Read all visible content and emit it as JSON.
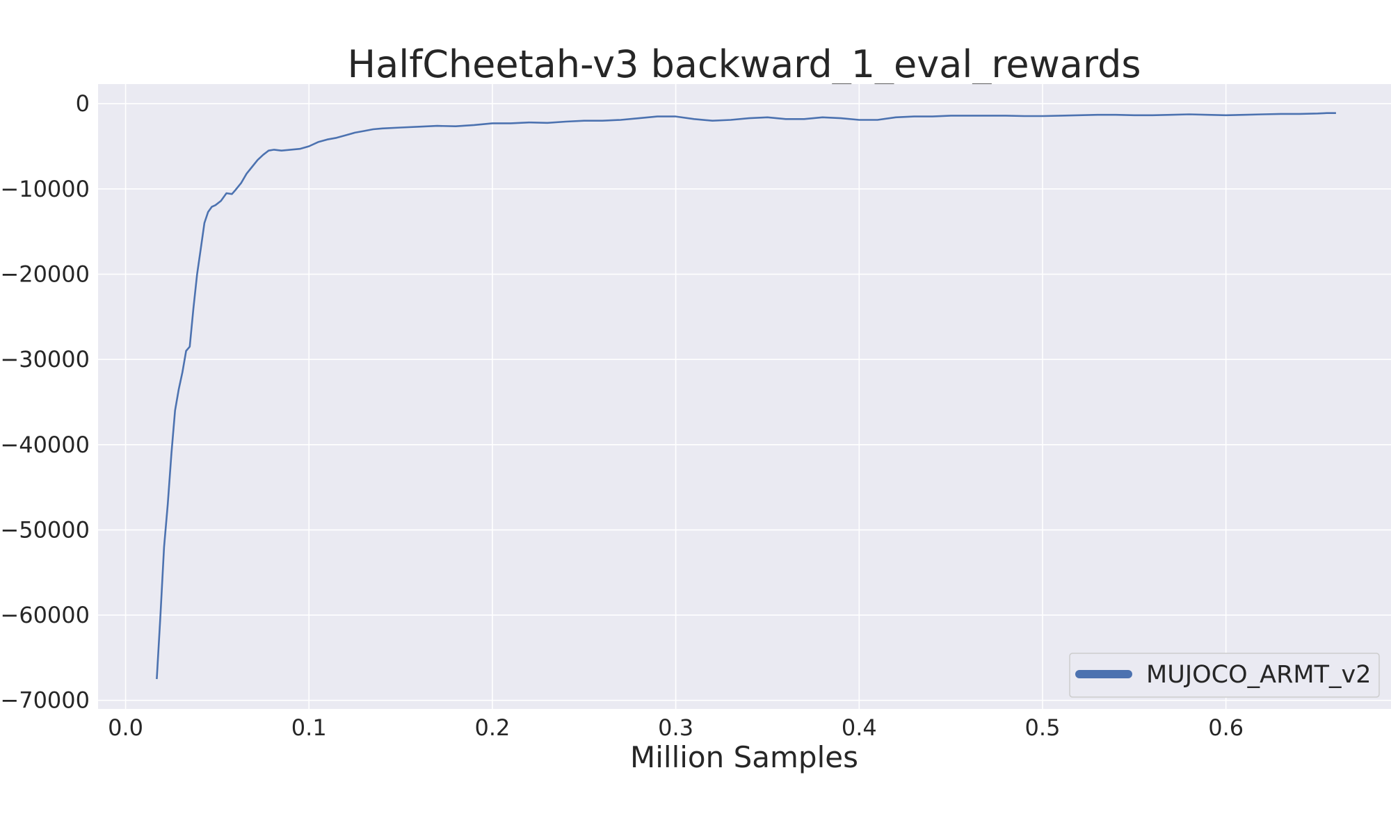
{
  "chart_data": {
    "type": "line",
    "title": "HalfCheetah-v3 backward_1_eval_rewards",
    "xlabel": "Million Samples",
    "ylabel": "",
    "xlim": [
      -0.015,
      0.69
    ],
    "ylim": [
      -71000,
      2300
    ],
    "xticks": [
      0.0,
      0.1,
      0.2,
      0.3,
      0.4,
      0.5,
      0.6
    ],
    "xtick_labels": [
      "0.0",
      "0.1",
      "0.2",
      "0.3",
      "0.4",
      "0.5",
      "0.6"
    ],
    "yticks": [
      0,
      -10000,
      -20000,
      -30000,
      -40000,
      -50000,
      -60000,
      -70000
    ],
    "ytick_labels": [
      "0",
      "−10000",
      "−20000",
      "−30000",
      "−40000",
      "−50000",
      "−60000",
      "−70000"
    ],
    "grid": true,
    "legend_position": "lower-right",
    "colors": {
      "series": "#4c72b0",
      "plot_bg": "#eaeaf2",
      "grid": "#ffffff",
      "text": "#262626"
    },
    "series": [
      {
        "name": "MUJOCO_ARMT_v2",
        "x": [
          0.017,
          0.019,
          0.021,
          0.023,
          0.025,
          0.027,
          0.029,
          0.031,
          0.033,
          0.035,
          0.037,
          0.039,
          0.041,
          0.043,
          0.045,
          0.047,
          0.049,
          0.052,
          0.055,
          0.058,
          0.06,
          0.063,
          0.066,
          0.069,
          0.072,
          0.075,
          0.078,
          0.081,
          0.085,
          0.09,
          0.095,
          0.1,
          0.105,
          0.11,
          0.115,
          0.12,
          0.125,
          0.13,
          0.135,
          0.14,
          0.15,
          0.16,
          0.17,
          0.18,
          0.19,
          0.2,
          0.21,
          0.22,
          0.23,
          0.24,
          0.25,
          0.26,
          0.27,
          0.28,
          0.29,
          0.3,
          0.31,
          0.32,
          0.33,
          0.34,
          0.35,
          0.36,
          0.37,
          0.38,
          0.39,
          0.4,
          0.41,
          0.42,
          0.43,
          0.44,
          0.45,
          0.46,
          0.47,
          0.48,
          0.49,
          0.5,
          0.51,
          0.52,
          0.53,
          0.54,
          0.55,
          0.56,
          0.57,
          0.58,
          0.59,
          0.6,
          0.61,
          0.62,
          0.63,
          0.64,
          0.65,
          0.655,
          0.66
        ],
        "y": [
          -67500,
          -60000,
          -52000,
          -47000,
          -41000,
          -36000,
          -33500,
          -31500,
          -29000,
          -28500,
          -24000,
          -20000,
          -17000,
          -14000,
          -12700,
          -12100,
          -11900,
          -11400,
          -10500,
          -10600,
          -10100,
          -9300,
          -8200,
          -7400,
          -6600,
          -6000,
          -5500,
          -5400,
          -5500,
          -5400,
          -5300,
          -5000,
          -4500,
          -4200,
          -4000,
          -3700,
          -3400,
          -3200,
          -3000,
          -2900,
          -2800,
          -2700,
          -2600,
          -2650,
          -2500,
          -2300,
          -2300,
          -2200,
          -2250,
          -2100,
          -2000,
          -2000,
          -1900,
          -1700,
          -1500,
          -1500,
          -1800,
          -2000,
          -1900,
          -1700,
          -1600,
          -1800,
          -1800,
          -1600,
          -1700,
          -1900,
          -1900,
          -1600,
          -1500,
          -1500,
          -1400,
          -1400,
          -1400,
          -1400,
          -1450,
          -1450,
          -1400,
          -1350,
          -1300,
          -1300,
          -1350,
          -1350,
          -1300,
          -1250,
          -1300,
          -1350,
          -1300,
          -1250,
          -1200,
          -1200,
          -1150,
          -1100,
          -1100
        ]
      }
    ]
  }
}
